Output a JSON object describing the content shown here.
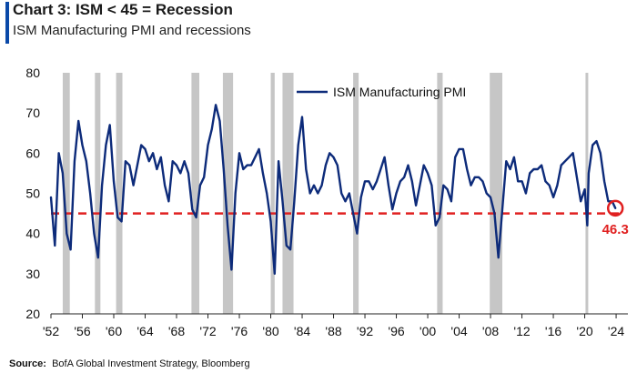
{
  "header": {
    "title": "Chart 3: ISM < 45 = Recession",
    "subtitle": "ISM Manufacturing PMI and recessions"
  },
  "source": {
    "label": "Source:",
    "text": "BofA Global Investment Strategy, Bloomberg"
  },
  "colors": {
    "series": "#0d2b7a",
    "recession": "#c6c6c6",
    "threshold": "#e02020",
    "accent": "#0a49a8"
  },
  "chart_data": {
    "type": "line",
    "title": "Chart 3: ISM < 45 = Recession",
    "subtitle": "ISM Manufacturing PMI and recessions",
    "xlabel": "",
    "ylabel": "",
    "xlim": [
      1952.0,
      2025.5
    ],
    "ylim": [
      20,
      80
    ],
    "y_ticks": [
      20,
      30,
      40,
      50,
      60,
      70,
      80
    ],
    "x_ticks": [
      {
        "value": 1952,
        "label": "'52"
      },
      {
        "value": 1956,
        "label": "'56"
      },
      {
        "value": 1960,
        "label": "'60"
      },
      {
        "value": 1964,
        "label": "'64"
      },
      {
        "value": 1968,
        "label": "'68"
      },
      {
        "value": 1972,
        "label": "'72"
      },
      {
        "value": 1976,
        "label": "'76"
      },
      {
        "value": 1980,
        "label": "'80"
      },
      {
        "value": 1984,
        "label": "'84"
      },
      {
        "value": 1988,
        "label": "'88"
      },
      {
        "value": 1992,
        "label": "'92"
      },
      {
        "value": 1996,
        "label": "'96"
      },
      {
        "value": 2000,
        "label": "'00"
      },
      {
        "value": 2004,
        "label": "'04"
      },
      {
        "value": 2008,
        "label": "'08"
      },
      {
        "value": 2012,
        "label": "'12"
      },
      {
        "value": 2016,
        "label": "'16"
      },
      {
        "value": 2020,
        "label": "'20"
      },
      {
        "value": 2024,
        "label": "'24"
      }
    ],
    "legend": {
      "position": "top-center"
    },
    "grid": false,
    "series": [
      {
        "name": "ISM Manufacturing PMI",
        "x": [
          1952.0,
          1952.5,
          1953.0,
          1953.5,
          1954.0,
          1954.5,
          1955.0,
          1955.5,
          1956.0,
          1956.5,
          1957.0,
          1957.5,
          1958.0,
          1958.5,
          1959.0,
          1959.5,
          1960.0,
          1960.5,
          1961.0,
          1961.5,
          1962.0,
          1962.5,
          1963.0,
          1963.5,
          1964.0,
          1964.5,
          1965.0,
          1965.5,
          1966.0,
          1966.5,
          1967.0,
          1967.5,
          1968.0,
          1968.5,
          1969.0,
          1969.5,
          1970.0,
          1970.5,
          1971.0,
          1971.5,
          1972.0,
          1972.5,
          1973.0,
          1973.5,
          1974.0,
          1974.5,
          1975.0,
          1975.5,
          1976.0,
          1976.5,
          1977.0,
          1977.5,
          1978.0,
          1978.5,
          1979.0,
          1979.5,
          1980.0,
          1980.5,
          1981.0,
          1981.5,
          1982.0,
          1982.5,
          1983.0,
          1983.5,
          1984.0,
          1984.5,
          1985.0,
          1985.5,
          1986.0,
          1986.5,
          1987.0,
          1987.5,
          1988.0,
          1988.5,
          1989.0,
          1989.5,
          1990.0,
          1990.5,
          1991.0,
          1991.5,
          1992.0,
          1992.5,
          1993.0,
          1993.5,
          1994.0,
          1994.5,
          1995.0,
          1995.5,
          1996.0,
          1996.5,
          1997.0,
          1997.5,
          1998.0,
          1998.5,
          1999.0,
          1999.5,
          2000.0,
          2000.5,
          2001.0,
          2001.5,
          2002.0,
          2002.5,
          2003.0,
          2003.5,
          2004.0,
          2004.5,
          2005.0,
          2005.5,
          2006.0,
          2006.5,
          2007.0,
          2007.5,
          2008.0,
          2008.5,
          2009.0,
          2009.5,
          2010.0,
          2010.5,
          2011.0,
          2011.5,
          2012.0,
          2012.5,
          2013.0,
          2013.5,
          2014.0,
          2014.5,
          2015.0,
          2015.5,
          2016.0,
          2016.5,
          2017.0,
          2017.5,
          2018.0,
          2018.5,
          2019.0,
          2019.5,
          2020.0,
          2020.33,
          2020.5,
          2021.0,
          2021.5,
          2022.0,
          2022.5,
          2023.0,
          2023.5,
          2023.9
        ],
        "y": [
          49,
          37,
          60,
          55,
          40,
          36,
          58,
          68,
          62,
          58,
          50,
          40,
          34,
          52,
          62,
          67,
          53,
          44,
          43,
          58,
          57,
          52,
          57,
          62,
          61,
          58,
          60,
          56,
          59,
          52,
          48,
          58,
          57,
          55,
          58,
          55,
          46,
          44,
          52,
          54,
          62,
          66,
          72,
          68,
          56,
          42,
          31,
          50,
          60,
          56,
          57,
          57,
          59,
          61,
          55,
          50,
          43,
          30,
          58,
          48,
          37,
          36,
          48,
          62,
          69,
          56,
          50,
          52,
          50,
          52,
          57,
          60,
          59,
          57,
          50,
          48,
          50,
          45,
          40,
          49,
          53,
          53,
          51,
          53,
          56,
          59,
          52,
          46,
          50,
          53,
          54,
          57,
          53,
          47,
          52,
          57,
          55,
          52,
          42,
          44,
          52,
          51,
          48,
          59,
          61,
          61,
          56,
          52,
          54,
          54,
          53,
          50,
          49,
          45,
          34,
          46,
          58,
          56,
          59,
          53,
          53,
          50,
          55,
          56,
          56,
          57,
          53,
          52,
          49,
          52,
          57,
          58,
          59,
          60,
          54,
          48,
          51,
          42,
          55,
          62,
          63,
          60,
          53,
          48,
          48,
          46.3
        ]
      }
    ],
    "recessions": [
      [
        1953.5,
        1954.4
      ],
      [
        1957.6,
        1958.3
      ],
      [
        1960.3,
        1961.1
      ],
      [
        1969.9,
        1970.9
      ],
      [
        1973.9,
        1975.2
      ],
      [
        1980.0,
        1980.5
      ],
      [
        1981.5,
        1982.9
      ],
      [
        1990.5,
        1991.2
      ],
      [
        2001.2,
        2001.9
      ],
      [
        2007.9,
        2009.5
      ],
      [
        2020.1,
        2020.4
      ]
    ],
    "threshold": 45,
    "annotation": {
      "label": "46.3",
      "x": 2023.9,
      "y": 46.3
    }
  }
}
